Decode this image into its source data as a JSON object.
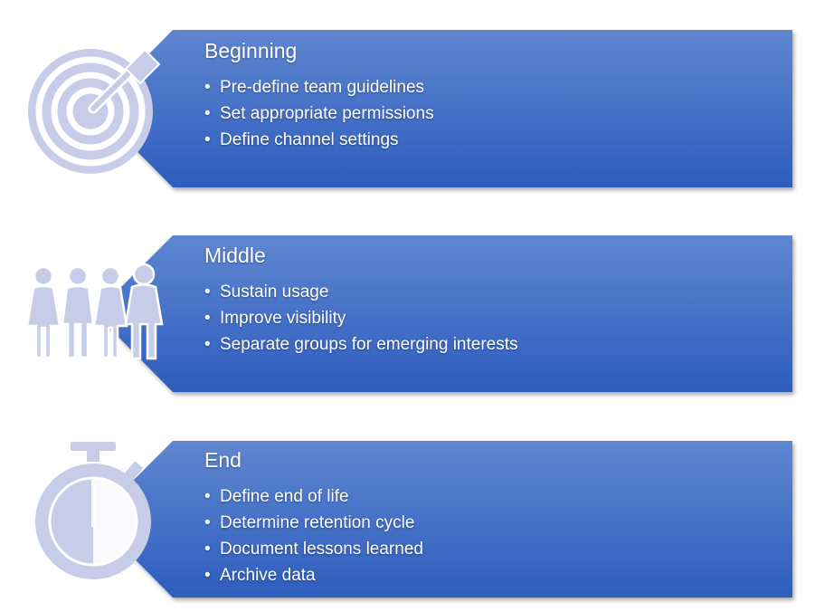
{
  "colors": {
    "panel_top": "#5d84cf",
    "panel_bottom": "#2f5fbf",
    "icon": "#c7cde8",
    "text": "#ffffff"
  },
  "panels": [
    {
      "title": "Beginning",
      "icon": "target-icon",
      "bullets": [
        "Pre-define team guidelines",
        "Set appropriate permissions",
        "Define channel settings"
      ]
    },
    {
      "title": "Middle",
      "icon": "people-group-icon",
      "bullets": [
        "Sustain usage",
        "Improve visibility",
        "Separate groups for emerging interests"
      ]
    },
    {
      "title": "End",
      "icon": "stopwatch-icon",
      "bullets": [
        "Define end of life",
        "Determine retention cycle",
        "Document lessons learned",
        "Archive data"
      ]
    }
  ]
}
